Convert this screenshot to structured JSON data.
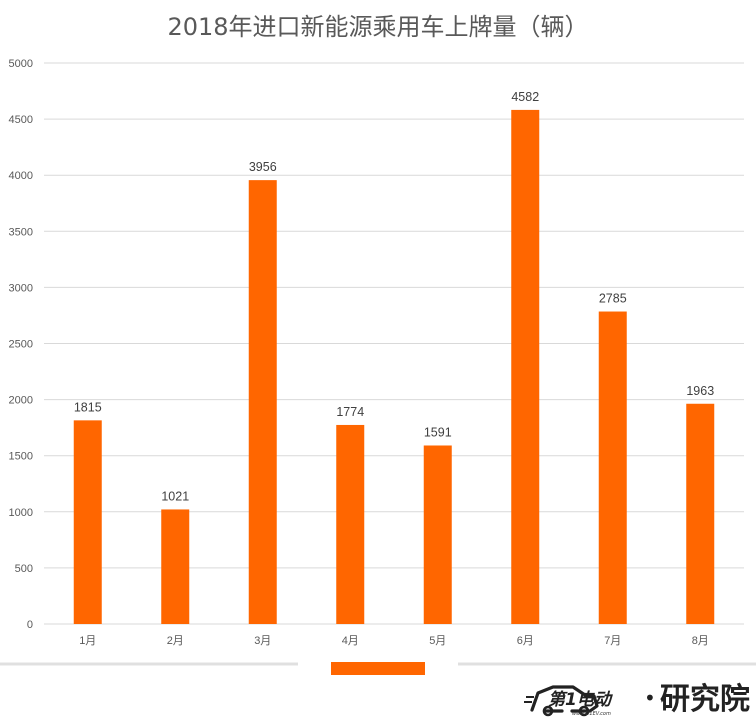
{
  "chart_data": {
    "type": "bar",
    "title": "2018年进口新能源乘用车上牌量（辆）",
    "categories": [
      "1月",
      "2月",
      "3月",
      "4月",
      "5月",
      "6月",
      "7月",
      "8月"
    ],
    "values": [
      1815,
      1021,
      3956,
      1774,
      1591,
      4582,
      2785,
      1963
    ],
    "yticks": [
      "0",
      "500",
      "1000",
      "1500",
      "2000",
      "2500",
      "3000",
      "3500",
      "4000",
      "4500",
      "5000"
    ],
    "ylim": [
      0,
      5000
    ],
    "xlabel": "",
    "ylabel": "",
    "grid": true,
    "bar_color": "#ff6600",
    "legend_color": "#ff6600"
  },
  "logo": {
    "mark": "第1电动",
    "dot": "•",
    "text": "研究院",
    "url": "www.D1EV.com"
  }
}
